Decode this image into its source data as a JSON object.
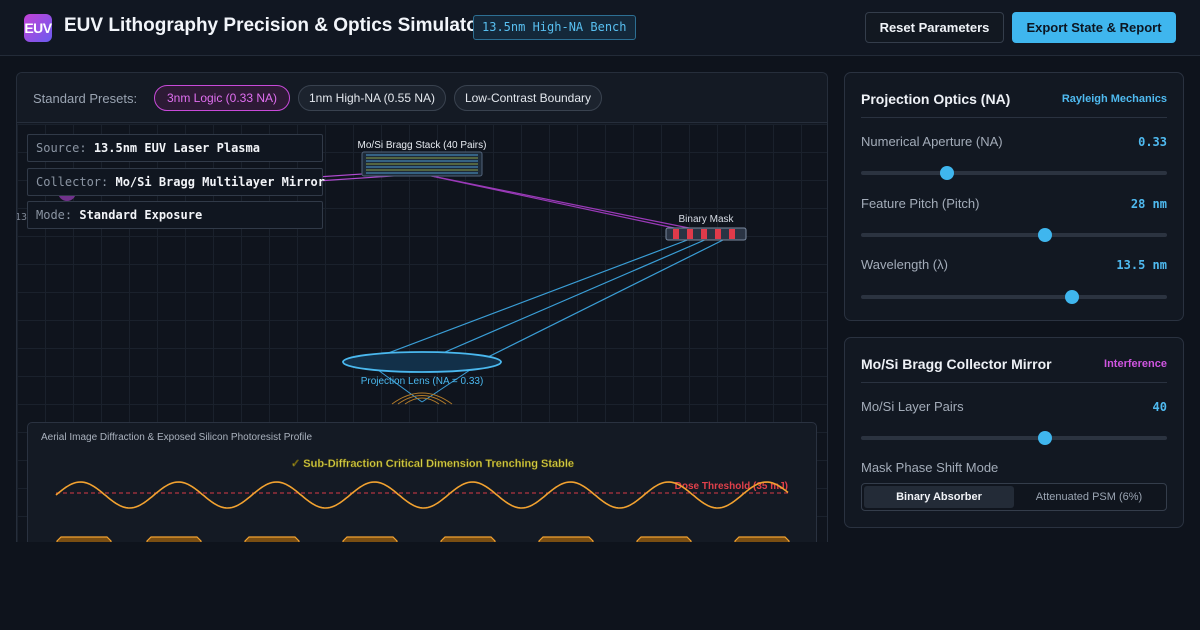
{
  "header": {
    "logo_text": "EUV",
    "title": "EUV Lithography Precision & Optics Simulator",
    "badge": "13.5nm High-NA Bench",
    "reset_label": "Reset Parameters",
    "export_label": "Export State & Report"
  },
  "presets": {
    "label": "Standard Presets:",
    "items": [
      {
        "label": "3nm Logic (0.33 NA)",
        "active": true
      },
      {
        "label": "1nm High-NA (0.55 NA)",
        "active": false
      },
      {
        "label": "Low-Contrast Boundary",
        "active": false
      }
    ]
  },
  "stage": {
    "info": [
      {
        "key": "Source:",
        "value": "13.5nm EUV Laser Plasma"
      },
      {
        "key": "Collector:",
        "value": "Mo/Si Bragg Multilayer Mirror"
      },
      {
        "key": "Mode:",
        "value": "Standard Exposure"
      }
    ],
    "stray_label": "13",
    "bragg_label": "Mo/Si Bragg Stack (40 Pairs)",
    "mask_label": "Binary Mask",
    "lens_label": "Projection Lens (NA = 0.33)"
  },
  "aerial": {
    "title": "Aerial Image Diffraction & Exposed Silicon Photoresist Profile",
    "status": "✓ Sub-Diffraction Critical Dimension Trenching Stable",
    "threshold_label": "Dose Threshold (35 mJ)"
  },
  "optics_card": {
    "title": "Projection Optics (NA)",
    "tag": "Rayleigh Mechanics",
    "params": [
      {
        "label": "Numerical Aperture (NA)",
        "value": "0.33",
        "fraction": 0.28
      },
      {
        "label": "Feature Pitch (Pitch)",
        "value": "28 nm",
        "fraction": 0.6
      },
      {
        "label": "Wavelength (λ)",
        "value": "13.5 nm",
        "fraction": 0.69
      }
    ]
  },
  "bragg_card": {
    "title": "Mo/Si Bragg Collector Mirror",
    "tag": "Interference",
    "params": [
      {
        "label": "Mo/Si Layer Pairs",
        "value": "40",
        "fraction": 0.6
      }
    ],
    "mode_label": "Mask Phase Shift Mode",
    "mode_options": [
      "Binary Absorber",
      "Attenuated PSM (6%)"
    ],
    "mode_selected": "Binary Absorber"
  },
  "colors": {
    "accent": "#3fb6ee",
    "magenta": "#c84ad9",
    "wave": "#f2a230",
    "threshold": "#e0404a",
    "status": "#d4d04a"
  }
}
